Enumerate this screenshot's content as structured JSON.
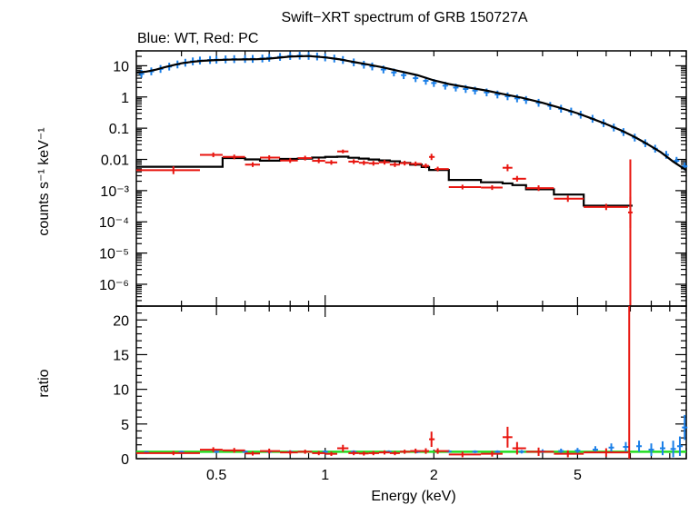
{
  "title": "Swift−XRT spectrum of GRB 150727A",
  "subtitle": "Blue: WT, Red: PC",
  "colors": {
    "wt": "#1a7fe8",
    "pc": "#e8150f",
    "model": "#000000",
    "unity": "#22dd22"
  },
  "chart_data": [
    {
      "type": "scatter",
      "panel": "spectrum",
      "xlabel": "Energy (keV)",
      "ylabel": "counts s⁻¹ keV⁻¹",
      "xscale": "log",
      "yscale": "log",
      "xlim": [
        0.3,
        10
      ],
      "ylim": [
        2e-07,
        30
      ],
      "yticks": [
        {
          "v": 10,
          "label": "10"
        },
        {
          "v": 1,
          "label": "1"
        },
        {
          "v": 0.1,
          "label": "0.1"
        },
        {
          "v": 0.01,
          "label": "0.01"
        },
        {
          "v": 0.001,
          "label": "10⁻³"
        },
        {
          "v": 0.0001,
          "label": "10⁻⁴"
        },
        {
          "v": 1e-05,
          "label": "10⁻⁵"
        },
        {
          "v": 1e-06,
          "label": "10⁻⁶"
        }
      ],
      "series": [
        {
          "name": "WT",
          "color": "#1a7fe8",
          "x": [
            0.31,
            0.33,
            0.35,
            0.37,
            0.39,
            0.41,
            0.43,
            0.45,
            0.48,
            0.5,
            0.53,
            0.56,
            0.6,
            0.63,
            0.67,
            0.7,
            0.75,
            0.8,
            0.85,
            0.9,
            0.95,
            1.0,
            1.06,
            1.12,
            1.2,
            1.28,
            1.35,
            1.45,
            1.55,
            1.65,
            1.78,
            1.9,
            2.0,
            2.15,
            2.3,
            2.45,
            2.6,
            2.8,
            3.0,
            3.2,
            3.4,
            3.6,
            3.9,
            4.2,
            4.5,
            4.8,
            5.1,
            5.5,
            5.9,
            6.3,
            6.7,
            7.2,
            7.7,
            8.2,
            8.8,
            9.4,
            9.9
          ],
          "y": [
            5.5,
            6.6,
            7.9,
            9.4,
            11,
            12.5,
            13.8,
            14.7,
            15.3,
            15.6,
            16.0,
            16.3,
            16.5,
            16.6,
            17.1,
            18.0,
            19.2,
            20.5,
            21.0,
            20.7,
            19.8,
            18.5,
            17.0,
            15.3,
            12.8,
            10.8,
            9.5,
            7.6,
            6.1,
            5.0,
            4.0,
            3.3,
            2.8,
            2.3,
            2.0,
            1.8,
            1.6,
            1.4,
            1.2,
            1.05,
            0.9,
            0.8,
            0.65,
            0.52,
            0.42,
            0.34,
            0.27,
            0.2,
            0.145,
            0.105,
            0.075,
            0.05,
            0.033,
            0.022,
            0.014,
            0.009,
            0.006
          ],
          "yerr": [
            0.25,
            0.25,
            0.25,
            0.25,
            0.25,
            0.25,
            0.25,
            0.25,
            0.25,
            0.25,
            0.25,
            0.25,
            0.25,
            0.25,
            0.25,
            0.25,
            0.25,
            0.25,
            0.25,
            0.25,
            0.25,
            0.25,
            0.25,
            0.25,
            0.25,
            0.25,
            0.25,
            0.25,
            0.25,
            0.25,
            0.25,
            0.25,
            0.25,
            0.25,
            0.25,
            0.25,
            0.25,
            0.25,
            0.25,
            0.25,
            0.25,
            0.25,
            0.25,
            0.25,
            0.25,
            0.25,
            0.25,
            0.25,
            0.25,
            0.25,
            0.25,
            0.25,
            0.25,
            0.25,
            0.25,
            0.25,
            0.25
          ]
        },
        {
          "name": "PC",
          "color": "#e8150f",
          "x": [
            0.38,
            0.49,
            0.56,
            0.63,
            0.7,
            0.8,
            0.88,
            0.96,
            1.04,
            1.12,
            1.2,
            1.28,
            1.36,
            1.46,
            1.56,
            1.66,
            1.78,
            1.9,
            1.97,
            2.05,
            2.4,
            2.9,
            3.2,
            3.4,
            3.9,
            4.7,
            6.0,
            7.0
          ],
          "y": [
            0.0045,
            0.014,
            0.012,
            0.0068,
            0.0114,
            0.0092,
            0.011,
            0.009,
            0.008,
            0.018,
            0.0085,
            0.0078,
            0.0075,
            0.0081,
            0.0068,
            0.0076,
            0.0072,
            0.0062,
            0.012,
            0.0049,
            0.0013,
            0.00125,
            0.0054,
            0.0024,
            0.0012,
            0.00055,
            0.0003,
            0.0002
          ],
          "xerr": [
            [
              0.3,
              0.45
            ],
            [
              0.45,
              0.52
            ],
            [
              0.52,
              0.6
            ],
            [
              0.6,
              0.66
            ],
            [
              0.66,
              0.75
            ],
            [
              0.75,
              0.84
            ],
            [
              0.84,
              0.92
            ],
            [
              0.92,
              1.0
            ],
            [
              1.0,
              1.08
            ],
            [
              1.08,
              1.16
            ],
            [
              1.16,
              1.24
            ],
            [
              1.24,
              1.32
            ],
            [
              1.32,
              1.41
            ],
            [
              1.41,
              1.51
            ],
            [
              1.51,
              1.61
            ],
            [
              1.61,
              1.72
            ],
            [
              1.72,
              1.85
            ],
            [
              1.85,
              1.94
            ],
            [
              1.94,
              2.01
            ],
            [
              2.01,
              2.2
            ],
            [
              2.2,
              2.7
            ],
            [
              2.7,
              3.1
            ],
            [
              3.1,
              3.3
            ],
            [
              3.3,
              3.6
            ],
            [
              3.6,
              4.3
            ],
            [
              4.3,
              5.2
            ],
            [
              5.2,
              6.9
            ],
            [
              6.9,
              7.1
            ]
          ],
          "yerr": [
            0.25,
            0.15,
            0.15,
            0.15,
            0.15,
            0.15,
            0.15,
            0.15,
            0.15,
            0.12,
            0.15,
            0.15,
            0.15,
            0.15,
            0.15,
            0.15,
            0.15,
            0.15,
            0.2,
            0.15,
            0.15,
            0.15,
            0.22,
            0.18,
            0.18,
            0.2,
            0.2,
            1.0
          ]
        },
        {
          "name": "WT model",
          "color": "#000000",
          "x": [
            0.3,
            0.32,
            0.34,
            0.36,
            0.38,
            0.4,
            0.43,
            0.46,
            0.5,
            0.55,
            0.6,
            0.65,
            0.7,
            0.75,
            0.8,
            0.9,
            1.0,
            1.1,
            1.2,
            1.3,
            1.45,
            1.6,
            1.8,
            2.0,
            2.2,
            2.5,
            2.8,
            3.1,
            3.5,
            4.0,
            4.5,
            5.0,
            5.5,
            6.0,
            6.6,
            7.2,
            7.8,
            8.5,
            9.2,
            10.0
          ],
          "y": [
            6.0,
            6.5,
            7.5,
            9.0,
            10.5,
            12.0,
            13.5,
            14.5,
            15.2,
            15.8,
            16.0,
            16.3,
            17.0,
            18.3,
            19.7,
            20.5,
            18.5,
            16.0,
            13.2,
            11.2,
            8.8,
            6.8,
            5.0,
            3.4,
            2.6,
            2.0,
            1.6,
            1.25,
            0.95,
            0.65,
            0.44,
            0.3,
            0.2,
            0.135,
            0.085,
            0.052,
            0.031,
            0.017,
            0.0085,
            0.0045
          ]
        },
        {
          "name": "PC model",
          "color": "#000000",
          "x": [
            0.3,
            0.45,
            0.52,
            0.6,
            0.66,
            0.75,
            0.84,
            0.92,
            1.0,
            1.08,
            1.16,
            1.24,
            1.32,
            1.41,
            1.51,
            1.61,
            1.72,
            1.85,
            1.94,
            2.01,
            2.2,
            2.7,
            3.1,
            3.3,
            3.6,
            4.3,
            5.2,
            6.9
          ],
          "y": [
            0.0058,
            0.0058,
            0.011,
            0.01,
            0.0091,
            0.0104,
            0.0106,
            0.0115,
            0.012,
            0.0122,
            0.0113,
            0.0106,
            0.0099,
            0.0093,
            0.0087,
            0.0077,
            0.0068,
            0.0057,
            0.0046,
            0.0046,
            0.0022,
            0.00185,
            0.0017,
            0.0015,
            0.0011,
            0.00075,
            0.00033,
            0.00033
          ]
        }
      ]
    },
    {
      "type": "scatter",
      "panel": "ratio",
      "xlabel": "Energy (keV)",
      "ylabel": "ratio",
      "xscale": "log",
      "xlim": [
        0.3,
        10
      ],
      "ylim": [
        0,
        22
      ],
      "yticks": [
        0,
        5,
        10,
        15,
        20
      ],
      "xticks": [
        {
          "v": 0.5,
          "label": "0.5"
        },
        {
          "v": 1,
          "label": "1"
        },
        {
          "v": 2,
          "label": "2"
        },
        {
          "v": 5,
          "label": "5"
        }
      ],
      "reference_line": 1,
      "series": [
        {
          "name": "WT",
          "color": "#1a7fe8",
          "x": [
            0.32,
            0.4,
            0.5,
            0.6,
            0.7,
            0.8,
            1.0,
            1.2,
            1.5,
            1.8,
            2.2,
            2.6,
            3.0,
            3.5,
            4.0,
            4.5,
            5.0,
            5.6,
            6.2,
            6.8,
            7.4,
            8.0,
            8.6,
            9.2,
            9.6,
            9.9
          ],
          "y": [
            0.9,
            0.95,
            1.0,
            1.0,
            1.0,
            1.0,
            1.0,
            1.0,
            1.0,
            1.0,
            1.05,
            1.0,
            1.0,
            1.0,
            1.05,
            1.1,
            1.15,
            1.3,
            1.6,
            1.7,
            1.8,
            1.3,
            1.5,
            1.4,
            1.8,
            4.5
          ],
          "yerr": [
            0.2,
            0.2,
            0.2,
            0.2,
            0.2,
            0.2,
            0.2,
            0.2,
            0.2,
            0.2,
            0.2,
            0.2,
            0.2,
            0.25,
            0.3,
            0.35,
            0.4,
            0.5,
            0.6,
            0.7,
            0.8,
            0.9,
            1.0,
            1.2,
            1.4,
            1.8
          ]
        },
        {
          "name": "PC",
          "color": "#e8150f",
          "x": [
            0.38,
            0.49,
            0.56,
            0.63,
            0.7,
            0.8,
            0.88,
            0.96,
            1.04,
            1.12,
            1.2,
            1.28,
            1.36,
            1.46,
            1.56,
            1.66,
            1.78,
            1.9,
            1.97,
            2.05,
            2.4,
            2.9,
            3.2,
            3.4,
            3.9,
            4.7,
            6.0
          ],
          "y": [
            0.8,
            1.3,
            1.2,
            0.75,
            1.1,
            0.9,
            1.0,
            0.8,
            0.7,
            1.5,
            0.8,
            0.75,
            0.8,
            0.9,
            0.8,
            1.0,
            1.1,
            1.1,
            2.8,
            1.1,
            0.6,
            0.7,
            3.1,
            1.5,
            1.0,
            0.7,
            0.9
          ],
          "xerr": [
            [
              0.3,
              0.45
            ],
            [
              0.45,
              0.52
            ],
            [
              0.52,
              0.6
            ],
            [
              0.6,
              0.66
            ],
            [
              0.66,
              0.75
            ],
            [
              0.75,
              0.84
            ],
            [
              0.84,
              0.92
            ],
            [
              0.92,
              1.0
            ],
            [
              1.0,
              1.08
            ],
            [
              1.08,
              1.16
            ],
            [
              1.16,
              1.24
            ],
            [
              1.24,
              1.32
            ],
            [
              1.32,
              1.41
            ],
            [
              1.41,
              1.51
            ],
            [
              1.51,
              1.61
            ],
            [
              1.61,
              1.72
            ],
            [
              1.72,
              1.85
            ],
            [
              1.85,
              1.94
            ],
            [
              1.94,
              2.01
            ],
            [
              2.01,
              2.2
            ],
            [
              2.2,
              2.7
            ],
            [
              2.7,
              3.1
            ],
            [
              3.1,
              3.3
            ],
            [
              3.3,
              3.6
            ],
            [
              3.6,
              4.3
            ],
            [
              4.3,
              5.2
            ],
            [
              5.2,
              6.9
            ]
          ],
          "yerr": [
            0.3,
            0.35,
            0.35,
            0.3,
            0.35,
            0.3,
            0.3,
            0.3,
            0.3,
            0.5,
            0.3,
            0.3,
            0.3,
            0.3,
            0.3,
            0.3,
            0.35,
            0.4,
            1.1,
            0.4,
            0.4,
            0.4,
            1.5,
            0.9,
            0.6,
            0.5,
            0.6
          ]
        }
      ],
      "spike": {
        "x": 6.95,
        "y_from": 0,
        "y_to": 22
      }
    }
  ]
}
